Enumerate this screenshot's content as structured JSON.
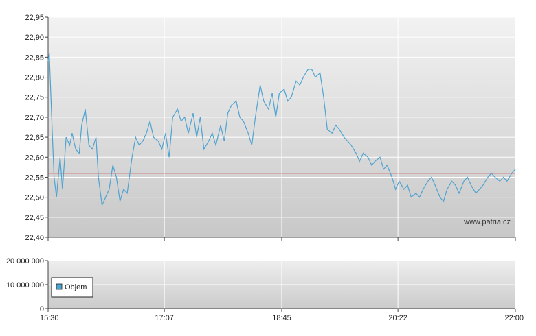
{
  "chart_data": [
    {
      "type": "line",
      "title": "",
      "xlabel": "",
      "ylabel": "",
      "ylim": [
        22.4,
        22.95
      ],
      "y_ticks": [
        "22,40",
        "22,45",
        "22,50",
        "22,55",
        "22,60",
        "22,65",
        "22,70",
        "22,75",
        "22,80",
        "22,85",
        "22,90",
        "22,95"
      ],
      "x_ticks": [
        "15:30",
        "17:07",
        "18:45",
        "20:22",
        "22:00"
      ],
      "reference_line": {
        "value": 22.56,
        "color": "#cc3333"
      },
      "line_color": "#4fa3d1",
      "watermark": "www.patria.cz",
      "grid": true,
      "series": [
        {
          "x": [
            "15:30",
            "15:31",
            "15:33",
            "15:35",
            "15:37",
            "15:40",
            "15:42",
            "15:45",
            "15:48",
            "15:50",
            "15:53",
            "15:56",
            "15:58",
            "16:01",
            "16:04",
            "16:07",
            "16:10",
            "16:12",
            "16:15",
            "16:18",
            "16:21",
            "16:24",
            "16:27",
            "16:30",
            "16:33",
            "16:36",
            "16:40",
            "16:43",
            "16:46",
            "16:49",
            "16:52",
            "16:55",
            "16:58",
            "17:02",
            "17:05",
            "17:08",
            "17:11",
            "17:14",
            "17:18",
            "17:21",
            "17:24",
            "17:27",
            "17:31",
            "17:34",
            "17:37",
            "17:40",
            "17:44",
            "17:47",
            "17:50",
            "17:54",
            "17:57",
            "18:00",
            "18:03",
            "18:07",
            "18:10",
            "18:13",
            "18:17",
            "18:20",
            "18:23",
            "18:27",
            "18:30",
            "18:34",
            "18:37",
            "18:40",
            "18:43",
            "18:47",
            "18:50",
            "18:53",
            "18:57",
            "19:00",
            "19:03",
            "19:07",
            "19:10",
            "19:13",
            "19:17",
            "19:20",
            "19:23",
            "19:27",
            "19:30",
            "19:33",
            "19:37",
            "19:40",
            "19:43",
            "19:47",
            "19:50",
            "19:53",
            "19:57",
            "20:00",
            "20:03",
            "20:07",
            "20:10",
            "20:13",
            "20:17",
            "20:20",
            "20:23",
            "20:27",
            "20:30",
            "20:33",
            "20:37",
            "20:40",
            "20:43",
            "20:47",
            "20:50",
            "20:53",
            "20:57",
            "21:00",
            "21:03",
            "21:07",
            "21:10",
            "21:13",
            "21:17",
            "21:20",
            "21:23",
            "21:27",
            "21:30",
            "21:33",
            "21:37",
            "21:40",
            "21:43",
            "21:47",
            "21:50",
            "21:53",
            "21:57",
            "22:00"
          ],
          "values": [
            22.84,
            22.86,
            22.7,
            22.55,
            22.5,
            22.6,
            22.52,
            22.65,
            22.63,
            22.66,
            22.62,
            22.61,
            22.68,
            22.72,
            22.63,
            22.62,
            22.65,
            22.55,
            22.48,
            22.5,
            22.52,
            22.58,
            22.55,
            22.49,
            22.52,
            22.51,
            22.6,
            22.65,
            22.63,
            22.64,
            22.66,
            22.69,
            22.65,
            22.64,
            22.62,
            22.66,
            22.6,
            22.7,
            22.72,
            22.69,
            22.7,
            22.66,
            22.71,
            22.65,
            22.7,
            22.62,
            22.64,
            22.66,
            22.63,
            22.68,
            22.64,
            22.71,
            22.73,
            22.74,
            22.7,
            22.69,
            22.66,
            22.63,
            22.7,
            22.78,
            22.74,
            22.72,
            22.76,
            22.7,
            22.76,
            22.77,
            22.74,
            22.75,
            22.79,
            22.78,
            22.8,
            22.82,
            22.82,
            22.8,
            22.81,
            22.75,
            22.67,
            22.66,
            22.68,
            22.67,
            22.65,
            22.64,
            22.63,
            22.61,
            22.59,
            22.61,
            22.6,
            22.58,
            22.59,
            22.6,
            22.57,
            22.58,
            22.55,
            22.52,
            22.54,
            22.52,
            22.53,
            22.5,
            22.51,
            22.5,
            22.52,
            22.54,
            22.55,
            22.53,
            22.5,
            22.49,
            22.52,
            22.54,
            22.53,
            22.51,
            22.54,
            22.55,
            22.53,
            22.51,
            22.52,
            22.53,
            22.55,
            22.56,
            22.55,
            22.54,
            22.55,
            22.54,
            22.56,
            22.57
          ]
        }
      ]
    },
    {
      "type": "bar",
      "title": "",
      "xlabel": "",
      "ylabel": "",
      "ylim": [
        0,
        20000000
      ],
      "y_ticks": [
        "0",
        "10 000 000",
        "20 000 000"
      ],
      "x_ticks": [
        "15:30",
        "17:07",
        "18:45",
        "20:22",
        "22:00"
      ],
      "legend": {
        "label": "Objem",
        "color": "#4fa3d1",
        "position": "left"
      },
      "grid": true,
      "series": []
    }
  ]
}
